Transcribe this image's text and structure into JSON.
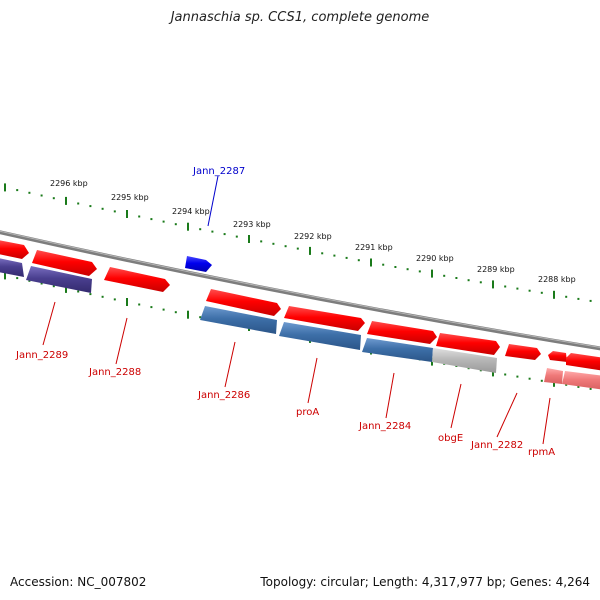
{
  "title": "Jannaschia sp. CCS1, complete genome",
  "footer": {
    "accession": "Accession: NC_007802",
    "topology": "Topology: circular; Length: 4,317,977 bp; Genes: 4,264"
  },
  "colors": {
    "forward_gene": "#ff0000",
    "reverse_gene_blue": "#3d6fa8",
    "reverse_gene_purple": "#4a3f8f",
    "reverse_gene_grey": "#b8b8b8",
    "reverse_gene_pink": "#f07a7a",
    "highlight_gene": "#0000ee",
    "tick": "#1a7a1a",
    "backbone": "#888888",
    "label_red": "#cc0000",
    "label_blue": "#0000cc"
  },
  "scale": {
    "kbp_labels": [
      "2296 kbp",
      "2295 kbp",
      "2294 kbp",
      "2293 kbp",
      "2292 kbp",
      "2291 kbp",
      "2290 kbp",
      "2289 kbp",
      "2288 kbp"
    ]
  },
  "genes": {
    "highlight": {
      "label": "Jann_2287",
      "color": "#0000ee"
    },
    "labeled": [
      {
        "label": "Jann_2289"
      },
      {
        "label": "Jann_2288"
      },
      {
        "label": "Jann_2286"
      },
      {
        "label": "proA"
      },
      {
        "label": "Jann_2284"
      },
      {
        "label": "obgE"
      },
      {
        "label": "Jann_2282"
      },
      {
        "label": "rpmA"
      }
    ]
  }
}
